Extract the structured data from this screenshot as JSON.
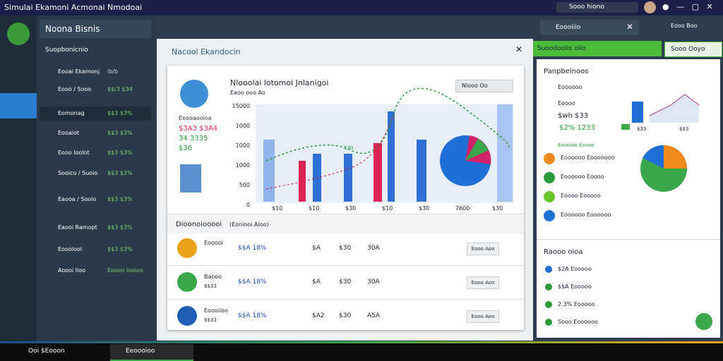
{
  "window": {
    "title": "Simulai Ekamoni Acmonai Nmodoai",
    "search": "Sooo hiono"
  },
  "sidebar": {
    "header": "Noona Bisnis",
    "section": "Suopbonicnio",
    "items": [
      {
        "label": "Eooai Ekamonj",
        "value": "lb/b"
      },
      {
        "label": "Eooo / Sooo",
        "value": "$$/3  $34"
      },
      {
        "label": "Eomonag",
        "value": "$$3  $3%"
      },
      {
        "label": "Eooaiot",
        "value": "$$3  $3%"
      },
      {
        "label": "Eooo loolot",
        "value": "$$3  $3%"
      },
      {
        "label": "Sooico / Suoio",
        "value": "$$3  $3%"
      },
      {
        "label": "Eaooa / Sooio",
        "value": "$$3  $3%"
      },
      {
        "label": "Eaooi Ramopt",
        "value": "$$3  $3%"
      },
      {
        "label": "Eooolool",
        "value": "$$3  $3%"
      },
      {
        "label": "Aoooi lioo",
        "value": "Eooioi looioo"
      }
    ]
  },
  "dialog": {
    "title": "Nacool Ekandocin",
    "chart_title": "Nlooolai lotomoi Jnlanigoi",
    "chart_subtitle": "Eaoo ooo Ao",
    "toggle": "Nlooo  Oo",
    "info": [
      "Eeooaooioa",
      "$3A3 $3A4",
      "34 3335",
      "$36"
    ],
    "yticks": [
      "15000",
      "1000",
      "1000",
      "1000",
      "500",
      "0"
    ],
    "xlabels": [
      "$10",
      "$10",
      "$30",
      "$10",
      "$30",
      "7600",
      "$30"
    ],
    "bar_label": "$30",
    "table_title": "Dioonoiooooi",
    "table_note": "(Eoniooi Aioo)",
    "rows": [
      {
        "name": "Eooooi",
        "sub": "",
        "cells": [
          "$$A  18%",
          "$A",
          "$30",
          "30A"
        ],
        "button": "Eooo  Aoo"
      },
      {
        "name": "Baooo",
        "sub": "$$33",
        "cells": [
          "$$A  18%",
          "$A",
          "$30",
          "30A"
        ],
        "button": "Eooo  Aoo"
      },
      {
        "name": "Eoooiioo",
        "sub": "$$33",
        "cells": [
          "$$A  18%",
          "$A2",
          "$30",
          "A5A"
        ],
        "button": "Eooo  Aoo"
      }
    ]
  },
  "right": {
    "search": "Eoooiiio",
    "user": "Eooo Boo",
    "green_button": "Suoodooiio oiio",
    "select": "Sooo Ooyo",
    "panel_title": "Panpbeinoos",
    "items": [
      "Eoooooo",
      "Eoooo",
      "$wh $33",
      "$2%  1233"
    ],
    "mini_labels": [
      "$33",
      "$$3"
    ],
    "list_title": "Eoooioo Eoooo",
    "list": [
      "Eoooooo Eooooooo",
      "Eoooooo Eoooo",
      "Eoooo Eooooo",
      "Eoooooo Eoooooo"
    ],
    "section2": "Raooo oioa",
    "list2": [
      "$2A  Eooooo",
      "$$A  Eooooo",
      "2.3%  Eooooo",
      "Sooo Eoooooo"
    ]
  },
  "taskbar": {
    "search": "Ooi $Eooon",
    "app": "Eeoooioo"
  }
}
